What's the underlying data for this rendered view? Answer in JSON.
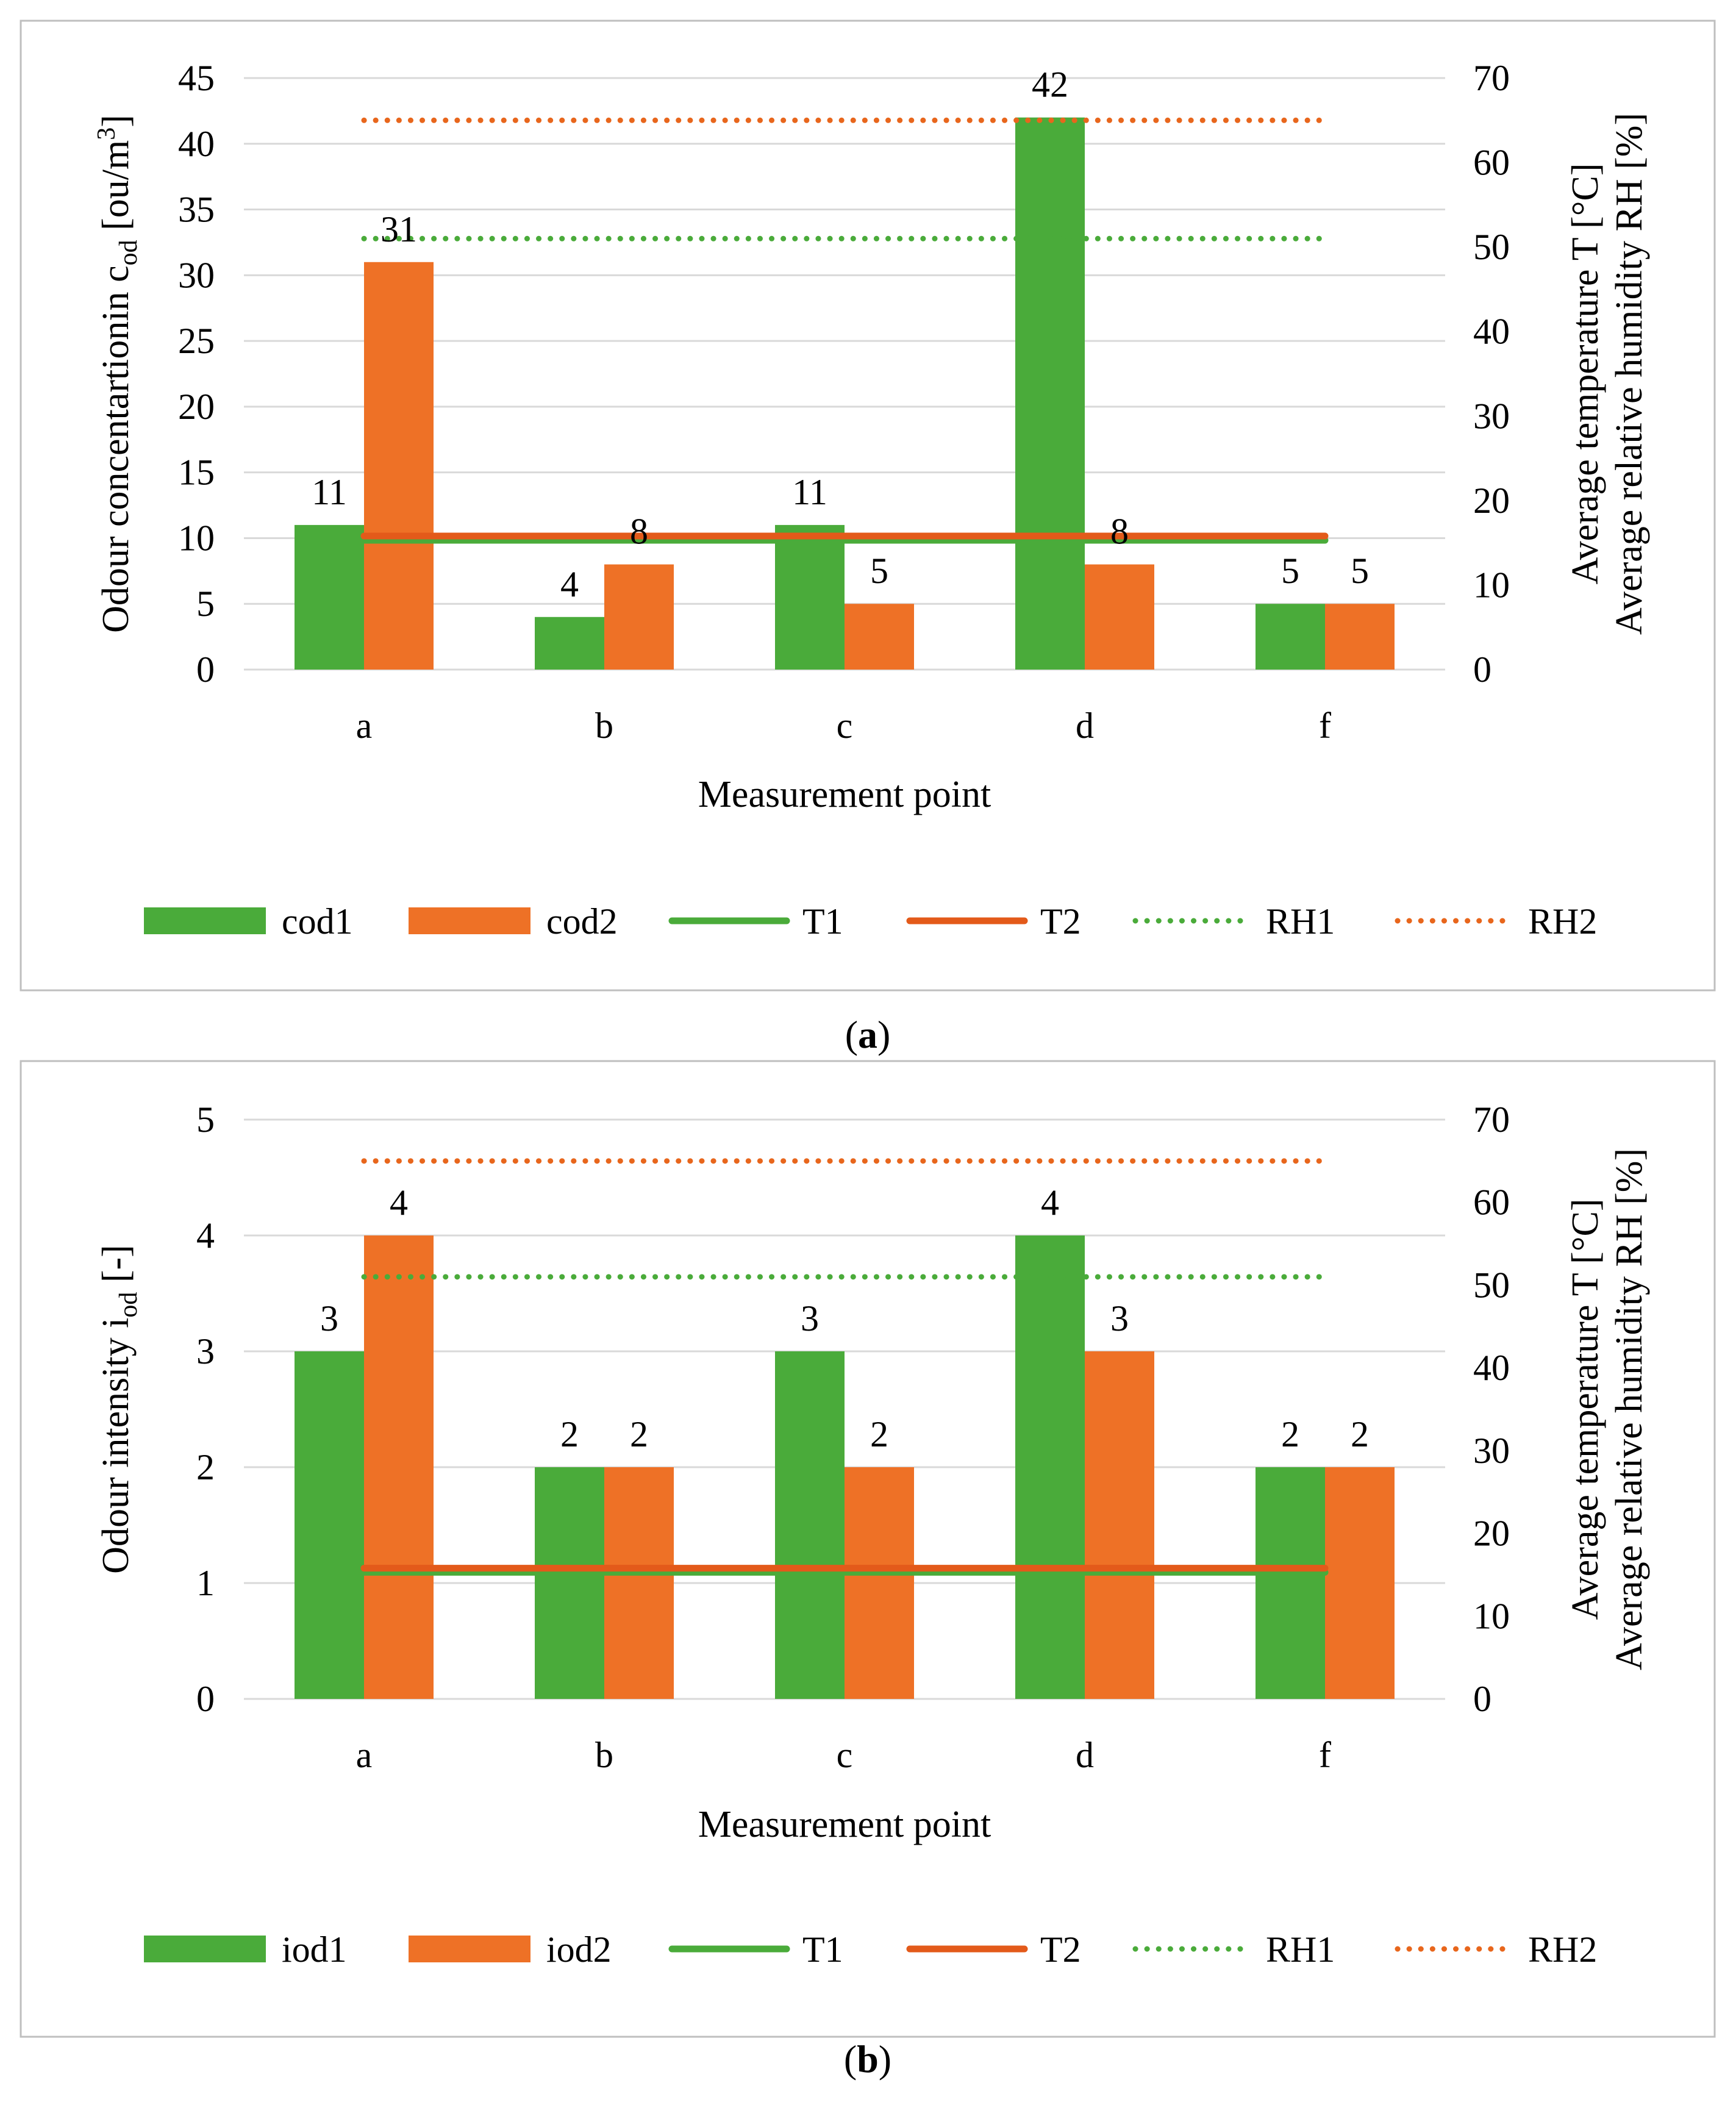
{
  "colors": {
    "green": "#4aab3a",
    "orange": "#ee7126",
    "t2_line": "#e35a1a",
    "rh2_dot": "#e8661c",
    "rh1_dot": "#4aab3a",
    "grid": "#d9d9d9"
  },
  "chart_data": [
    {
      "type": "bar",
      "panel": "a",
      "caption_pre": "(",
      "caption_letter": "a",
      "caption_post": ")",
      "categories": [
        "a",
        "b",
        "c",
        "d",
        "f"
      ],
      "xlabel": "Measurement point",
      "ylabel_main": "Odour concentartionin c",
      "ylabel_sub": "od",
      "ylabel_tail": " [ou/m",
      "ylabel_sup": "3",
      "ylabel_end": "]",
      "y2label_line1": "Average temperature T [°C]",
      "y2label_line2": "Average relative humidity RH [%]",
      "ylim": [
        0,
        45
      ],
      "yticks": [
        0,
        5,
        10,
        15,
        20,
        25,
        30,
        35,
        40,
        45
      ],
      "y2lim": [
        0,
        70
      ],
      "y2ticks": [
        0,
        10,
        20,
        30,
        40,
        50,
        60,
        70
      ],
      "grid": true,
      "legend_position": "bottom",
      "series": [
        {
          "name": "cod1",
          "kind": "bar",
          "color": "#4aab3a",
          "values": [
            11,
            4,
            11,
            42,
            5
          ]
        },
        {
          "name": "cod2",
          "kind": "bar",
          "color": "#ee7126",
          "values": [
            31,
            8,
            5,
            8,
            5
          ]
        },
        {
          "name": "T1",
          "kind": "line",
          "style": "solid",
          "axis": "right",
          "color": "#4aab3a",
          "values": [
            15.3,
            15.3,
            15.3,
            15.3,
            15.3
          ]
        },
        {
          "name": "T2",
          "kind": "line",
          "style": "solid",
          "axis": "right",
          "color": "#e35a1a",
          "values": [
            15.8,
            15.8,
            15.8,
            15.8,
            15.8
          ]
        },
        {
          "name": "RH1",
          "kind": "line",
          "style": "dotted",
          "axis": "right",
          "color": "#4aab3a",
          "values": [
            51,
            51,
            51,
            51,
            51
          ]
        },
        {
          "name": "RH2",
          "kind": "line",
          "style": "dotted",
          "axis": "right",
          "color": "#e8661c",
          "values": [
            65,
            65,
            65,
            65,
            65
          ]
        }
      ]
    },
    {
      "type": "bar",
      "panel": "b",
      "caption_pre": "(",
      "caption_letter": "b",
      "caption_post": ")",
      "categories": [
        "a",
        "b",
        "c",
        "d",
        "f"
      ],
      "xlabel": "Measurement point",
      "ylabel_main": "Odour intensity i",
      "ylabel_sub": "od",
      "ylabel_tail": " [-]",
      "ylabel_sup": "",
      "ylabel_end": "",
      "y2label_line1": "Average temperature T [°C]",
      "y2label_line2": "Average relative humidity RH [%]",
      "ylim": [
        0,
        5
      ],
      "yticks": [
        0,
        1,
        2,
        3,
        4,
        5
      ],
      "y2lim": [
        0,
        70
      ],
      "y2ticks": [
        0,
        10,
        20,
        30,
        40,
        50,
        60,
        70
      ],
      "grid": true,
      "legend_position": "bottom",
      "series": [
        {
          "name": "iod1",
          "kind": "bar",
          "color": "#4aab3a",
          "values": [
            3,
            2,
            3,
            4,
            2
          ]
        },
        {
          "name": "iod2",
          "kind": "bar",
          "color": "#ee7126",
          "values": [
            4,
            2,
            2,
            3,
            2
          ]
        },
        {
          "name": "T1",
          "kind": "line",
          "style": "solid",
          "axis": "right",
          "color": "#4aab3a",
          "values": [
            15.3,
            15.3,
            15.3,
            15.3,
            15.3
          ]
        },
        {
          "name": "T2",
          "kind": "line",
          "style": "solid",
          "axis": "right",
          "color": "#e35a1a",
          "values": [
            15.8,
            15.8,
            15.8,
            15.8,
            15.8
          ]
        },
        {
          "name": "RH1",
          "kind": "line",
          "style": "dotted",
          "axis": "right",
          "color": "#4aab3a",
          "values": [
            51,
            51,
            51,
            51,
            51
          ]
        },
        {
          "name": "RH2",
          "kind": "line",
          "style": "dotted",
          "axis": "right",
          "color": "#e8661c",
          "values": [
            65,
            65,
            65,
            65,
            65
          ]
        }
      ]
    }
  ]
}
